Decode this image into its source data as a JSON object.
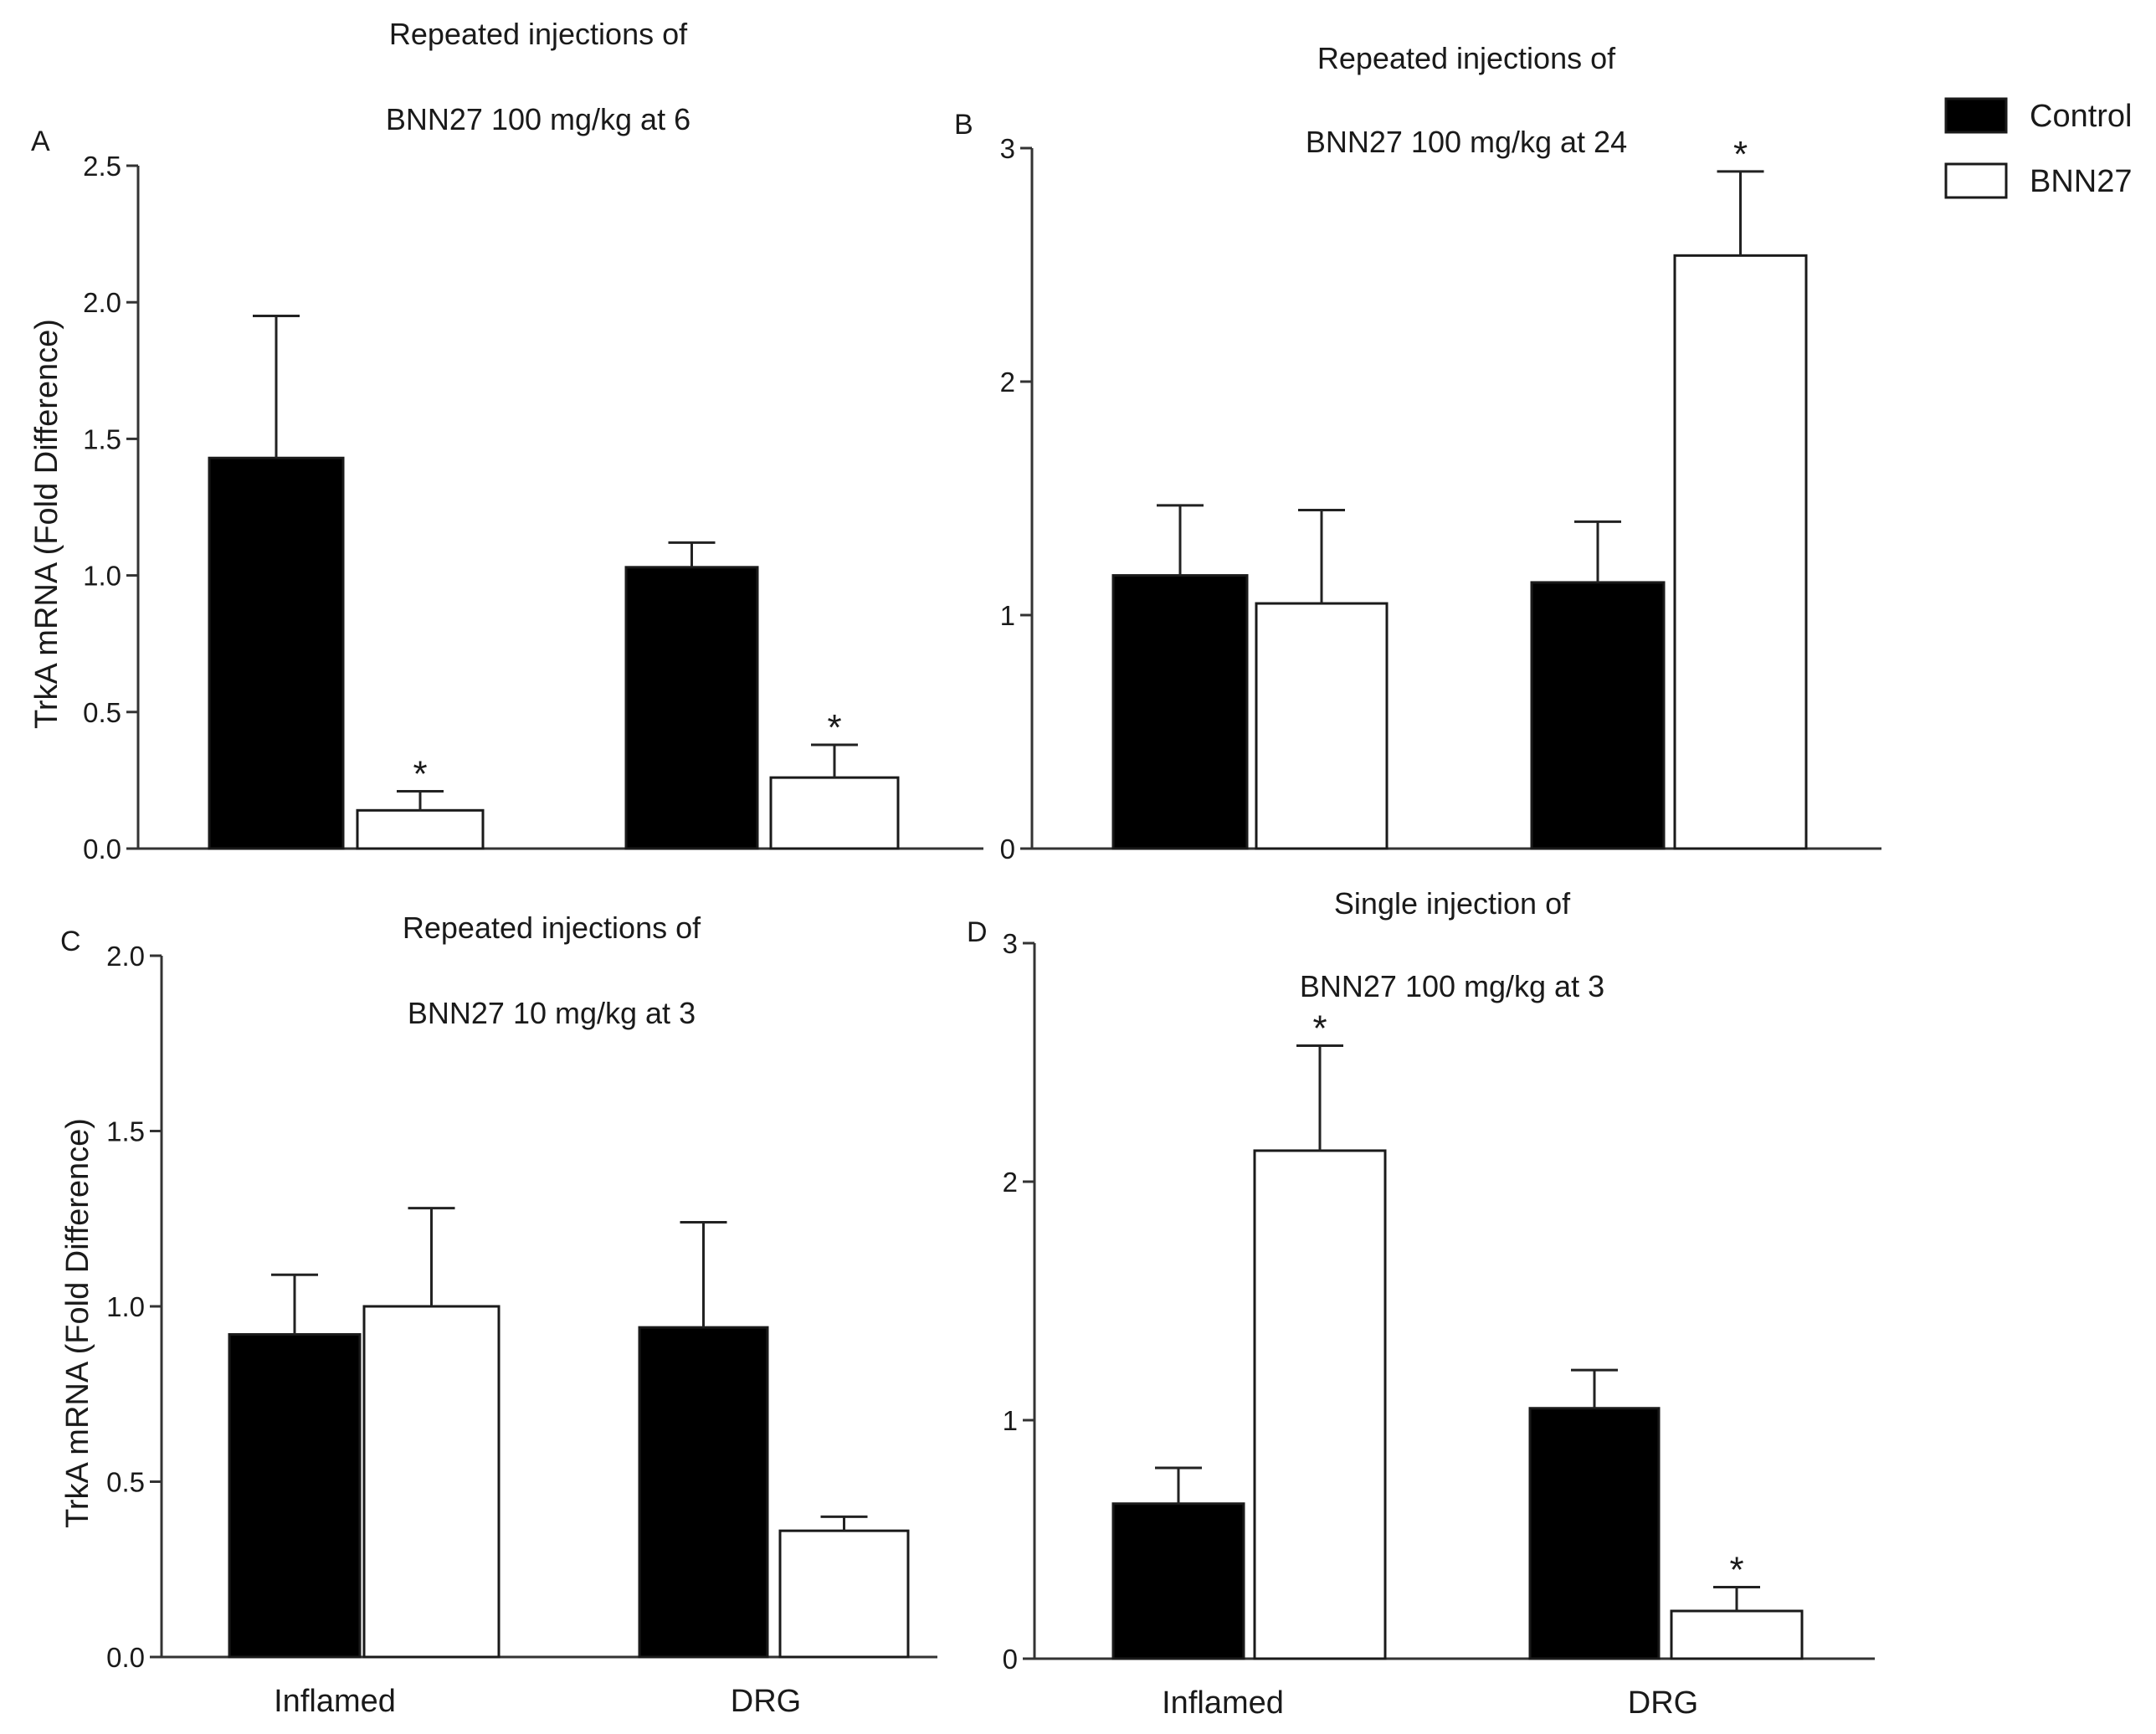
{
  "legend": {
    "items": [
      {
        "label": "Control",
        "fill": "#000000"
      },
      {
        "label": "BNN27",
        "fill": "#ffffff"
      }
    ]
  },
  "colors": {
    "control": "#000000",
    "bnn27": "#ffffff",
    "stroke": "#1a1a1a"
  },
  "chart_data": [
    {
      "panel": "A",
      "type": "bar",
      "title_lines": [
        "Repeated injections of",
        "BNN27 100 mg/kg at 6"
      ],
      "ylabel": "TrkA mRNA (Fold Difference)",
      "ylim": [
        0,
        2.5
      ],
      "yticks": [
        "0.0",
        "0.5",
        "1.0",
        "1.5",
        "2.0",
        "2.5"
      ],
      "categories": [
        "",
        ""
      ],
      "series": [
        {
          "name": "Control",
          "values": [
            1.43,
            1.03
          ],
          "errors": [
            0.52,
            0.09
          ],
          "significant": [
            false,
            false
          ]
        },
        {
          "name": "BNN27",
          "values": [
            0.14,
            0.26
          ],
          "errors": [
            0.07,
            0.12
          ],
          "significant": [
            true,
            true
          ]
        }
      ]
    },
    {
      "panel": "B",
      "type": "bar",
      "title_lines": [
        "Repeated injections of",
        "BNN27 100 mg/kg at 24"
      ],
      "ylabel": "",
      "ylim": [
        0,
        3
      ],
      "yticks": [
        "0",
        "1",
        "2",
        "3"
      ],
      "categories": [
        "",
        ""
      ],
      "series": [
        {
          "name": "Control",
          "values": [
            1.17,
            1.14
          ],
          "errors": [
            0.3,
            0.26
          ],
          "significant": [
            false,
            false
          ]
        },
        {
          "name": "BNN27",
          "values": [
            1.05,
            2.54
          ],
          "errors": [
            0.4,
            0.36
          ],
          "significant": [
            false,
            true
          ]
        }
      ]
    },
    {
      "panel": "C",
      "type": "bar",
      "title_lines": [
        "Repeated injections of",
        "BNN27 10 mg/kg at 3"
      ],
      "ylabel": "TrkA mRNA (Fold Difference)",
      "ylim": [
        0,
        2.0
      ],
      "yticks": [
        "0.0",
        "0.5",
        "1.0",
        "1.5",
        "2.0"
      ],
      "categories": [
        "Inflamed",
        "DRG"
      ],
      "series": [
        {
          "name": "Control",
          "values": [
            0.92,
            0.94
          ],
          "errors": [
            0.17,
            0.3
          ],
          "significant": [
            false,
            false
          ]
        },
        {
          "name": "BNN27",
          "values": [
            1.0,
            0.36
          ],
          "errors": [
            0.28,
            0.04
          ],
          "significant": [
            false,
            false
          ]
        }
      ]
    },
    {
      "panel": "D",
      "type": "bar",
      "title_lines": [
        "Single injection of",
        "BNN27 100 mg/kg at 3"
      ],
      "ylabel": "",
      "ylim": [
        0,
        3
      ],
      "yticks": [
        "0",
        "1",
        "2",
        "3"
      ],
      "categories": [
        "Inflamed",
        "DRG"
      ],
      "series": [
        {
          "name": "Control",
          "values": [
            0.65,
            1.05
          ],
          "errors": [
            0.15,
            0.16
          ],
          "significant": [
            false,
            false
          ]
        },
        {
          "name": "BNN27",
          "values": [
            2.13,
            0.2
          ],
          "errors": [
            0.44,
            0.1
          ],
          "significant": [
            true,
            true
          ]
        }
      ]
    }
  ]
}
